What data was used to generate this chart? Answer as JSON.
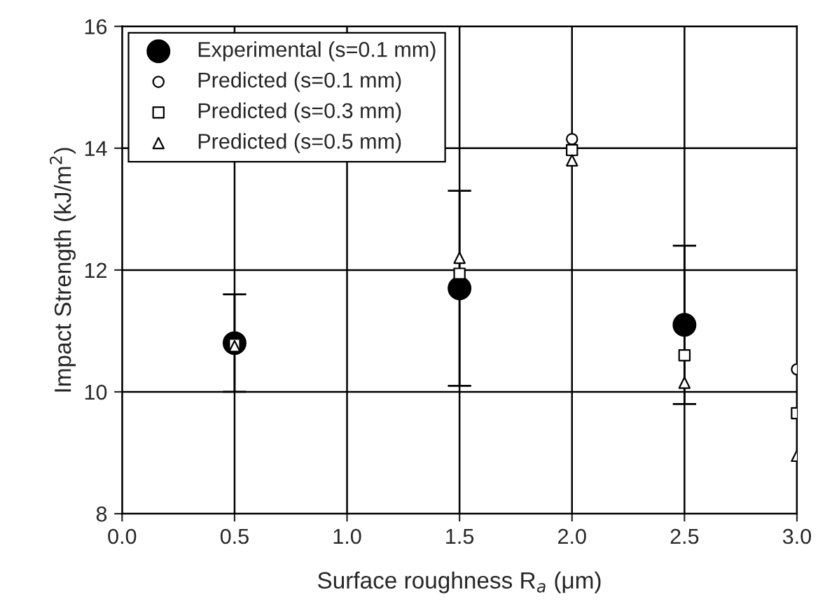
{
  "chart_data": {
    "type": "scatter",
    "xlabel": "Surface roughness R$_{a}$ (μm)",
    "ylabel": "Impact Strength (kJ/m$^{2}$)",
    "xlim": [
      0.0,
      3.0
    ],
    "xticks": [
      {
        "value": 0,
        "label": "0.0"
      },
      {
        "value": 0.5,
        "label": "0.5"
      },
      {
        "value": 1,
        "label": "1.0"
      },
      {
        "value": 1.5,
        "label": "1.5"
      },
      {
        "value": 2,
        "label": "2.0"
      },
      {
        "value": 2.5,
        "label": "2.5"
      },
      {
        "value": 3,
        "label": "3.0"
      }
    ],
    "ylim": [
      8,
      16
    ],
    "yticks": [
      8,
      10,
      12,
      14,
      16
    ],
    "grid": true,
    "legend": "top left",
    "series": [
      {
        "name": "Experimental (s=0.1 mm)",
        "color": "#000000",
        "marker": "circle",
        "x": [
          0.5,
          1.5,
          2.5
        ],
        "values": [
          10.8,
          11.7,
          11.1
        ],
        "errors": [
          0.8,
          1.6,
          1.3
        ]
      },
      {
        "name": "Predicted (s=0.1 mm)",
        "color": "#000000",
        "marker": "circle",
        "x": [
          2.0,
          3.0
        ],
        "values": [
          14.15,
          10.37
        ]
      },
      {
        "name": "Predicted (s=0.3 mm)",
        "color": "#000000",
        "marker": "square",
        "x": [
          0.5,
          1.5,
          2.0,
          2.5,
          3.0
        ],
        "values": [
          10.78,
          11.94,
          13.97,
          10.6,
          9.65
        ]
      },
      {
        "name": "Predicted (s=0.5 mm)",
        "color": "#000000",
        "marker": "triangle",
        "x": [
          0.5,
          1.5,
          2.0,
          2.5,
          3.0
        ],
        "values": [
          10.75,
          12.2,
          13.8,
          10.15,
          8.95
        ]
      }
    ]
  }
}
